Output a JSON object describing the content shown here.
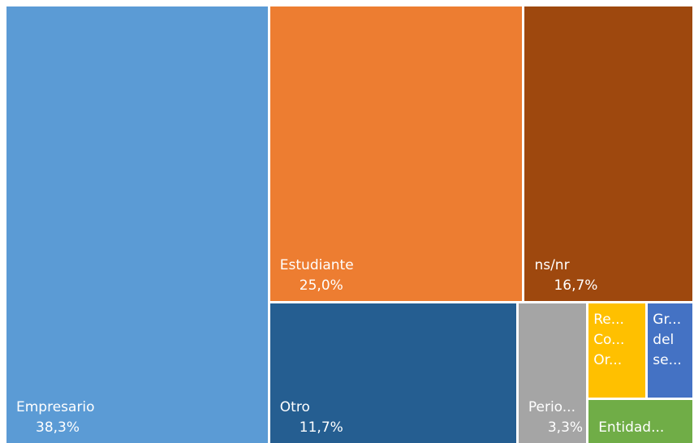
{
  "chart_data": {
    "type": "treemap",
    "categories": [
      "Empresario",
      "Estudiante",
      "ns/nr",
      "Otro",
      "Perio...",
      "Re...\nCo...\nOr...",
      "Gr...\ndel\nse...",
      "Entidad..."
    ],
    "values": [
      38.3,
      25.0,
      16.7,
      11.7,
      3.3,
      1.9,
      1.5,
      1.6
    ],
    "value_labels": [
      "38,3%",
      "25,0%",
      "16,7%",
      "11,7%",
      "3,3%",
      null,
      null,
      null
    ],
    "colors": [
      "#5b9bd5",
      "#ed7d31",
      "#9e480e",
      "#255e91",
      "#a5a5a5",
      "#ffc000",
      "#4472c4",
      "#70ad47"
    ]
  }
}
